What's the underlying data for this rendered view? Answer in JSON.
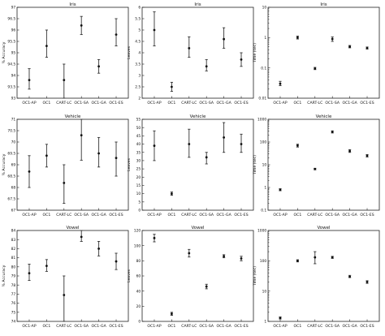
{
  "chart_data": [
    {
      "type": "scatter",
      "title": "Iris",
      "ylabel": "% Accuracy",
      "scale": "linear",
      "ylim": [
        93,
        97
      ],
      "yticks": [
        93,
        93.5,
        94,
        94.5,
        95,
        95.5,
        96,
        96.5,
        97
      ],
      "ytick_labels": [
        "93",
        "93.5",
        "94",
        "94.5",
        "95",
        "95.5",
        "96",
        "96.5",
        "97"
      ],
      "categories": [
        "OC1-AP",
        "OC1",
        "CART-LC",
        "OC1-SA",
        "OC1-GA",
        "OC1-ES"
      ],
      "points": [
        {
          "y": 93.8,
          "lo": 93.4,
          "hi": 94.3
        },
        {
          "y": 95.3,
          "lo": 94.8,
          "hi": 96.0
        },
        {
          "y": 93.8,
          "lo": 93.0,
          "hi": 94.5
        },
        {
          "y": 96.2,
          "lo": 95.8,
          "hi": 96.6
        },
        {
          "y": 94.4,
          "lo": 94.1,
          "hi": 94.7
        },
        {
          "y": 95.8,
          "lo": 95.3,
          "hi": 96.5
        }
      ]
    },
    {
      "type": "scatter",
      "title": "Iris",
      "ylabel": "Leaves",
      "scale": "linear",
      "ylim": [
        2,
        6
      ],
      "yticks": [
        2,
        2.5,
        3,
        3.5,
        4,
        4.5,
        5,
        5.5,
        6
      ],
      "ytick_labels": [
        "2",
        "2.5",
        "3",
        "3.5",
        "4",
        "4.5",
        "5",
        "5.5",
        "6"
      ],
      "categories": [
        "OC1-AP",
        "OC1",
        "CART-LC",
        "OC1-SA",
        "OC1-GA",
        "OC1-ES"
      ],
      "points": [
        {
          "y": 5.0,
          "lo": 4.3,
          "hi": 5.8
        },
        {
          "y": 2.5,
          "lo": 2.3,
          "hi": 2.7
        },
        {
          "y": 4.2,
          "lo": 3.8,
          "hi": 4.7
        },
        {
          "y": 3.4,
          "lo": 3.2,
          "hi": 3.7
        },
        {
          "y": 4.6,
          "lo": 4.2,
          "hi": 5.1
        },
        {
          "y": 3.7,
          "lo": 3.4,
          "hi": 4.0
        }
      ]
    },
    {
      "type": "scatter",
      "title": "Iris",
      "ylabel": "Time (sec)",
      "scale": "log",
      "ylim": [
        0.01,
        10
      ],
      "yticks": [
        0.01,
        0.1,
        1,
        10
      ],
      "ytick_labels": [
        "0.01",
        "0.1",
        "1",
        "10"
      ],
      "categories": [
        "OC1-AP",
        "OC1",
        "CART-LC",
        "OC1-SA",
        "OC1-GA",
        "OC1-ES"
      ],
      "points": [
        {
          "y": 0.03,
          "lo": 0.026,
          "hi": 0.036
        },
        {
          "y": 1.0,
          "lo": 0.9,
          "hi": 1.12
        },
        {
          "y": 0.095,
          "lo": 0.088,
          "hi": 0.104
        },
        {
          "y": 0.9,
          "lo": 0.75,
          "hi": 1.05
        },
        {
          "y": 0.5,
          "lo": 0.46,
          "hi": 0.55
        },
        {
          "y": 0.45,
          "lo": 0.42,
          "hi": 0.49
        }
      ]
    },
    {
      "type": "scatter",
      "title": "Vehicle",
      "ylabel": "% Accuracy",
      "scale": "linear",
      "ylim": [
        67,
        71
      ],
      "yticks": [
        67,
        67.5,
        68,
        68.5,
        69,
        69.5,
        70,
        70.5,
        71
      ],
      "ytick_labels": [
        "67",
        "67.5",
        "68",
        "68.5",
        "69",
        "69.5",
        "70",
        "70.5",
        "71"
      ],
      "categories": [
        "OC1-AP",
        "OC1",
        "CART-LC",
        "OC1-SA",
        "OC1-GA",
        "OC1-ES"
      ],
      "points": [
        {
          "y": 68.7,
          "lo": 68.0,
          "hi": 69.4
        },
        {
          "y": 69.4,
          "lo": 68.9,
          "hi": 69.9
        },
        {
          "y": 68.2,
          "lo": 67.3,
          "hi": 69.0
        },
        {
          "y": 70.3,
          "lo": 69.2,
          "hi": 71.0
        },
        {
          "y": 69.5,
          "lo": 68.9,
          "hi": 70.2
        },
        {
          "y": 69.3,
          "lo": 68.5,
          "hi": 70.0
        }
      ]
    },
    {
      "type": "scatter",
      "title": "Vehicle",
      "ylabel": "Leaves",
      "scale": "linear",
      "ylim": [
        0,
        55
      ],
      "yticks": [
        0,
        5,
        10,
        15,
        20,
        25,
        30,
        35,
        40,
        45,
        50,
        55
      ],
      "ytick_labels": [
        "0",
        "5",
        "10",
        "15",
        "20",
        "25",
        "30",
        "35",
        "40",
        "45",
        "50",
        "55"
      ],
      "categories": [
        "OC1-AP",
        "OC1",
        "CART-LC",
        "OC1-SA",
        "OC1-GA",
        "OC1-ES"
      ],
      "points": [
        {
          "y": 39,
          "lo": 30,
          "hi": 48
        },
        {
          "y": 10,
          "lo": 9,
          "hi": 11
        },
        {
          "y": 40,
          "lo": 32,
          "hi": 49
        },
        {
          "y": 32,
          "lo": 28,
          "hi": 35
        },
        {
          "y": 44,
          "lo": 35,
          "hi": 53
        },
        {
          "y": 40,
          "lo": 35,
          "hi": 46
        }
      ]
    },
    {
      "type": "scatter",
      "title": "Vehicle",
      "ylabel": "Time (sec)",
      "scale": "log",
      "ylim": [
        0.1,
        1000
      ],
      "yticks": [
        0.1,
        1,
        10,
        100,
        1000
      ],
      "ytick_labels": [
        "0.1",
        "1",
        "10",
        "100",
        "1000"
      ],
      "categories": [
        "OC1-AP",
        "OC1",
        "CART-LC",
        "OC1-SA",
        "OC1-GA",
        "OC1-ES"
      ],
      "points": [
        {
          "y": 0.8,
          "lo": 0.72,
          "hi": 0.88
        },
        {
          "y": 70,
          "lo": 60,
          "hi": 80
        },
        {
          "y": 6.5,
          "lo": 6.0,
          "hi": 7.0
        },
        {
          "y": 280,
          "lo": 250,
          "hi": 310
        },
        {
          "y": 40,
          "lo": 35,
          "hi": 46
        },
        {
          "y": 25,
          "lo": 22,
          "hi": 28
        }
      ]
    },
    {
      "type": "scatter",
      "title": "Vowel",
      "ylabel": "% Accuracy",
      "scale": "linear",
      "ylim": [
        74,
        84
      ],
      "yticks": [
        74,
        75,
        76,
        77,
        78,
        79,
        80,
        81,
        82,
        83,
        84
      ],
      "ytick_labels": [
        "74",
        "75",
        "76",
        "77",
        "78",
        "79",
        "80",
        "81",
        "82",
        "83",
        "84"
      ],
      "categories": [
        "OC1-AP",
        "OC1",
        "CART-LC",
        "OC1-SA",
        "OC1-GA",
        "OC1-ES"
      ],
      "points": [
        {
          "y": 79.3,
          "lo": 78.5,
          "hi": 80.3
        },
        {
          "y": 80.1,
          "lo": 79.5,
          "hi": 80.8
        },
        {
          "y": 76.9,
          "lo": 74.0,
          "hi": 79.0
        },
        {
          "y": 83.3,
          "lo": 82.8,
          "hi": 84.0
        },
        {
          "y": 82.0,
          "lo": 81.2,
          "hi": 82.8
        },
        {
          "y": 80.6,
          "lo": 79.7,
          "hi": 81.5
        }
      ]
    },
    {
      "type": "scatter",
      "title": "Vowel",
      "ylabel": "Leaves",
      "scale": "linear",
      "ylim": [
        0,
        120
      ],
      "yticks": [
        0,
        20,
        40,
        60,
        80,
        100,
        120
      ],
      "ytick_labels": [
        "0",
        "20",
        "40",
        "60",
        "80",
        "100",
        "120"
      ],
      "categories": [
        "OC1-AP",
        "OC1",
        "CART-LC",
        "OC1-SA",
        "OC1-GA",
        "OC1-ES"
      ],
      "points": [
        {
          "y": 110,
          "lo": 105,
          "hi": 115
        },
        {
          "y": 10,
          "lo": 8,
          "hi": 12
        },
        {
          "y": 90,
          "lo": 85,
          "hi": 95
        },
        {
          "y": 46,
          "lo": 43,
          "hi": 49
        },
        {
          "y": 86,
          "lo": 84,
          "hi": 88
        },
        {
          "y": 83,
          "lo": 80,
          "hi": 86
        }
      ]
    },
    {
      "type": "scatter",
      "title": "Vowel",
      "ylabel": "Time (sec)",
      "scale": "log",
      "ylim": [
        1,
        1000
      ],
      "yticks": [
        1,
        10,
        100,
        1000
      ],
      "ytick_labels": [
        "1",
        "10",
        "100",
        "1000"
      ],
      "categories": [
        "OC1-AP",
        "OC1",
        "CART-LC",
        "OC1-SA",
        "OC1-GA",
        "OC1-ES"
      ],
      "points": [
        {
          "y": 1.3,
          "lo": 1.2,
          "hi": 1.4
        },
        {
          "y": 100,
          "lo": 92,
          "hi": 108
        },
        {
          "y": 130,
          "lo": 80,
          "hi": 200
        },
        {
          "y": 130,
          "lo": 120,
          "hi": 140
        },
        {
          "y": 30,
          "lo": 28,
          "hi": 33
        },
        {
          "y": 20,
          "lo": 18,
          "hi": 22
        }
      ]
    }
  ]
}
